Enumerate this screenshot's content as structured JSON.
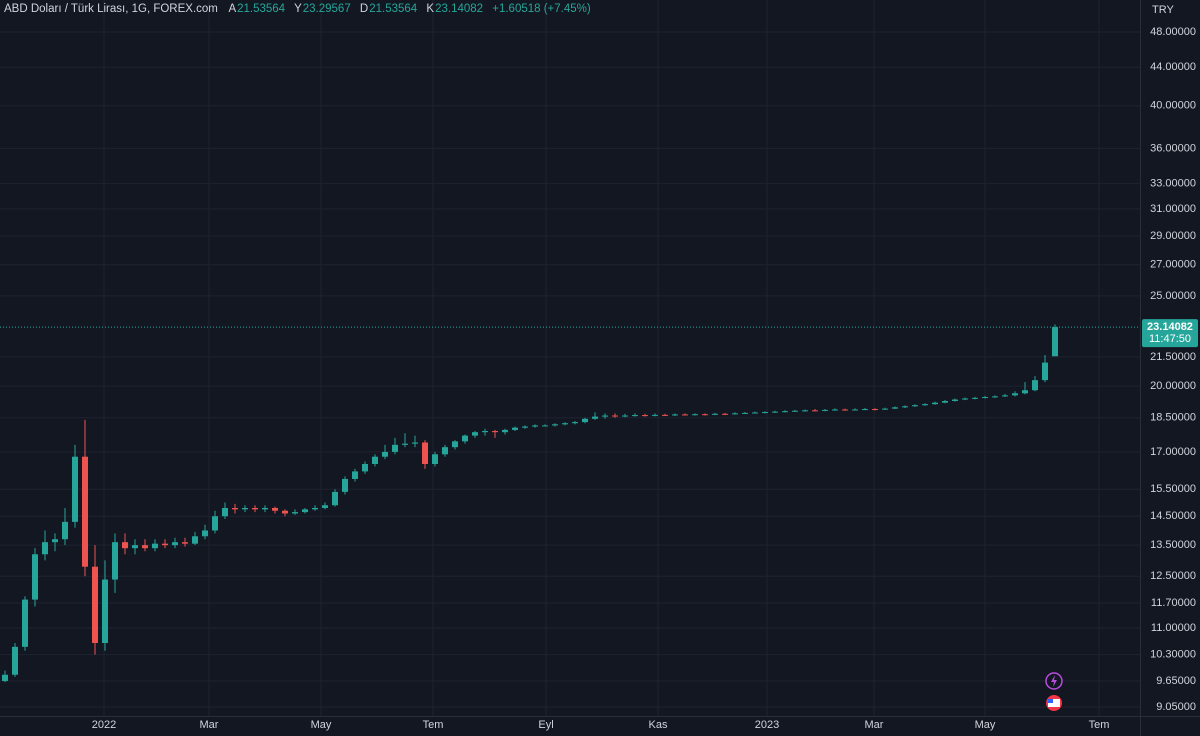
{
  "chart_data": {
    "type": "candlestick",
    "title": "ABD Doları / Türk Lirası, 1G, FOREX.com",
    "header_labels": [
      "A",
      "Y",
      "D",
      "K"
    ],
    "change": "+1.60518 (+7.45%)",
    "currency": "TRY",
    "countdown": "11:47:50",
    "log_scale": true,
    "grid": true,
    "up_color": "#26a69a",
    "down_color": "#ef5350",
    "ylim": [
      8.85,
      51.95
    ],
    "yticks": [
      {
        "value": 48,
        "label": "48.00000"
      },
      {
        "value": 44,
        "label": "44.00000"
      },
      {
        "value": 40,
        "label": "40.00000"
      },
      {
        "value": 36,
        "label": "36.00000"
      },
      {
        "value": 33,
        "label": "33.00000"
      },
      {
        "value": 31,
        "label": "31.00000"
      },
      {
        "value": 29,
        "label": "29.00000"
      },
      {
        "value": 27,
        "label": "27.00000"
      },
      {
        "value": 25,
        "label": "25.00000"
      },
      {
        "value": 21.5,
        "label": "21.50000"
      },
      {
        "value": 20,
        "label": "20.00000"
      },
      {
        "value": 18.5,
        "label": "18.50000"
      },
      {
        "value": 17,
        "label": "17.00000"
      },
      {
        "value": 15.5,
        "label": "15.50000"
      },
      {
        "value": 14.5,
        "label": "14.50000"
      },
      {
        "value": 13.5,
        "label": "13.50000"
      },
      {
        "value": 12.5,
        "label": "12.50000"
      },
      {
        "value": 11.7,
        "label": "11.70000"
      },
      {
        "value": 11,
        "label": "11.00000"
      },
      {
        "value": 10.3,
        "label": "10.30000"
      },
      {
        "value": 9.65,
        "label": "9.65000"
      },
      {
        "value": 9.05,
        "label": "9.05000"
      }
    ],
    "xlim": [
      0,
      114
    ],
    "xticks": [
      {
        "value": 10.4,
        "label": "2022"
      },
      {
        "value": 20.9,
        "label": "Mar"
      },
      {
        "value": 32.1,
        "label": "May"
      },
      {
        "value": 43.3,
        "label": "Tem"
      },
      {
        "value": 54.6,
        "label": "Eyl"
      },
      {
        "value": 65.8,
        "label": "Kas"
      },
      {
        "value": 76.7,
        "label": "2023"
      },
      {
        "value": 87.4,
        "label": "Mar"
      },
      {
        "value": 98.5,
        "label": "May"
      },
      {
        "value": 109.9,
        "label": "Tem"
      }
    ],
    "candles": [
      [
        9.65,
        9.9,
        9.62,
        9.8
      ],
      [
        9.8,
        10.6,
        9.75,
        10.5
      ],
      [
        10.5,
        11.9,
        10.4,
        11.8
      ],
      [
        11.8,
        13.4,
        11.6,
        13.2
      ],
      [
        13.2,
        14.0,
        13.0,
        13.6
      ],
      [
        13.6,
        13.9,
        13.3,
        13.7
      ],
      [
        13.7,
        14.8,
        13.5,
        14.3
      ],
      [
        14.3,
        17.3,
        14.1,
        16.8
      ],
      [
        16.8,
        18.4,
        12.5,
        12.8
      ],
      [
        12.8,
        13.5,
        10.3,
        10.6
      ],
      [
        10.6,
        13.0,
        10.4,
        12.4
      ],
      [
        12.4,
        13.9,
        12.0,
        13.6
      ],
      [
        13.6,
        13.9,
        13.2,
        13.4
      ],
      [
        13.4,
        13.7,
        13.2,
        13.5
      ],
      [
        13.5,
        13.7,
        13.3,
        13.4
      ],
      [
        13.4,
        13.7,
        13.3,
        13.55
      ],
      [
        13.55,
        13.7,
        13.4,
        13.5
      ],
      [
        13.5,
        13.75,
        13.4,
        13.6
      ],
      [
        13.6,
        13.75,
        13.45,
        13.55
      ],
      [
        13.55,
        13.95,
        13.5,
        13.8
      ],
      [
        13.8,
        14.2,
        13.7,
        14.0
      ],
      [
        14.0,
        14.7,
        13.9,
        14.5
      ],
      [
        14.5,
        15.0,
        14.4,
        14.8
      ],
      [
        14.8,
        14.95,
        14.6,
        14.75
      ],
      [
        14.75,
        14.9,
        14.65,
        14.8
      ],
      [
        14.8,
        14.9,
        14.65,
        14.75
      ],
      [
        14.75,
        14.9,
        14.65,
        14.8
      ],
      [
        14.8,
        14.85,
        14.6,
        14.7
      ],
      [
        14.7,
        14.75,
        14.5,
        14.6
      ],
      [
        14.6,
        14.75,
        14.55,
        14.65
      ],
      [
        14.65,
        14.8,
        14.6,
        14.75
      ],
      [
        14.75,
        14.9,
        14.7,
        14.8
      ],
      [
        14.8,
        15.0,
        14.75,
        14.9
      ],
      [
        14.9,
        15.5,
        14.85,
        15.4
      ],
      [
        15.4,
        16.0,
        15.3,
        15.9
      ],
      [
        15.9,
        16.3,
        15.8,
        16.2
      ],
      [
        16.2,
        16.6,
        16.1,
        16.5
      ],
      [
        16.5,
        16.9,
        16.4,
        16.8
      ],
      [
        16.8,
        17.3,
        16.7,
        17.0
      ],
      [
        17.0,
        17.6,
        16.9,
        17.3
      ],
      [
        17.3,
        17.8,
        17.2,
        17.35
      ],
      [
        17.35,
        17.7,
        17.2,
        17.4
      ],
      [
        17.4,
        17.5,
        16.3,
        16.5
      ],
      [
        16.5,
        17.0,
        16.4,
        16.9
      ],
      [
        16.9,
        17.3,
        16.8,
        17.2
      ],
      [
        17.2,
        17.5,
        17.1,
        17.45
      ],
      [
        17.45,
        17.75,
        17.35,
        17.7
      ],
      [
        17.7,
        17.9,
        17.6,
        17.85
      ],
      [
        17.85,
        18.0,
        17.7,
        17.9
      ],
      [
        17.9,
        17.95,
        17.6,
        17.85
      ],
      [
        17.85,
        18.0,
        17.75,
        17.95
      ],
      [
        17.95,
        18.1,
        17.9,
        18.05
      ],
      [
        18.05,
        18.15,
        18.0,
        18.1
      ],
      [
        18.1,
        18.2,
        18.05,
        18.15
      ],
      [
        18.15,
        18.2,
        18.1,
        18.15
      ],
      [
        18.15,
        18.25,
        18.1,
        18.2
      ],
      [
        18.2,
        18.3,
        18.15,
        18.25
      ],
      [
        18.25,
        18.35,
        18.2,
        18.3
      ],
      [
        18.3,
        18.5,
        18.25,
        18.45
      ],
      [
        18.45,
        18.75,
        18.4,
        18.55
      ],
      [
        18.55,
        18.7,
        18.45,
        18.6
      ],
      [
        18.6,
        18.7,
        18.5,
        18.58
      ],
      [
        18.58,
        18.68,
        18.52,
        18.6
      ],
      [
        18.6,
        18.7,
        18.55,
        18.62
      ],
      [
        18.62,
        18.68,
        18.55,
        18.6
      ],
      [
        18.6,
        18.7,
        18.56,
        18.63
      ],
      [
        18.63,
        18.68,
        18.58,
        18.62
      ],
      [
        18.62,
        18.7,
        18.58,
        18.65
      ],
      [
        18.65,
        18.7,
        18.6,
        18.64
      ],
      [
        18.64,
        18.7,
        18.6,
        18.66
      ],
      [
        18.66,
        18.7,
        18.6,
        18.65
      ],
      [
        18.65,
        18.72,
        18.62,
        18.68
      ],
      [
        18.68,
        18.72,
        18.62,
        18.67
      ],
      [
        18.67,
        18.75,
        18.64,
        18.7
      ],
      [
        18.7,
        18.76,
        18.67,
        18.72
      ],
      [
        18.72,
        18.78,
        18.69,
        18.74
      ],
      [
        18.74,
        18.8,
        18.7,
        18.76
      ],
      [
        18.76,
        18.82,
        18.72,
        18.78
      ],
      [
        18.78,
        18.85,
        18.74,
        18.8
      ],
      [
        18.8,
        18.86,
        18.76,
        18.82
      ],
      [
        18.82,
        18.88,
        18.78,
        18.84
      ],
      [
        18.84,
        18.9,
        18.8,
        18.83
      ],
      [
        18.83,
        18.9,
        18.8,
        18.86
      ],
      [
        18.86,
        18.93,
        18.82,
        18.88
      ],
      [
        18.88,
        18.92,
        18.82,
        18.87
      ],
      [
        18.87,
        18.93,
        18.84,
        18.88
      ],
      [
        18.88,
        18.95,
        18.85,
        18.9
      ],
      [
        18.9,
        18.94,
        18.84,
        18.89
      ],
      [
        18.89,
        18.96,
        18.86,
        18.92
      ],
      [
        18.92,
        19.02,
        18.9,
        18.98
      ],
      [
        18.98,
        19.07,
        18.95,
        19.03
      ],
      [
        19.03,
        19.12,
        19.0,
        19.08
      ],
      [
        19.08,
        19.17,
        19.05,
        19.13
      ],
      [
        19.13,
        19.25,
        19.1,
        19.2
      ],
      [
        19.2,
        19.33,
        19.17,
        19.28
      ],
      [
        19.28,
        19.4,
        19.25,
        19.35
      ],
      [
        19.35,
        19.45,
        19.32,
        19.4
      ],
      [
        19.4,
        19.48,
        19.36,
        19.43
      ],
      [
        19.43,
        19.52,
        19.4,
        19.47
      ],
      [
        19.47,
        19.55,
        19.43,
        19.5
      ],
      [
        19.5,
        19.62,
        19.47,
        19.55
      ],
      [
        19.55,
        19.75,
        19.5,
        19.65
      ],
      [
        19.65,
        20.2,
        19.6,
        19.8
      ],
      [
        19.8,
        20.5,
        19.75,
        20.3
      ],
      [
        20.3,
        21.6,
        20.2,
        21.2
      ],
      [
        21.53564,
        23.29567,
        21.53564,
        23.14082
      ]
    ]
  }
}
